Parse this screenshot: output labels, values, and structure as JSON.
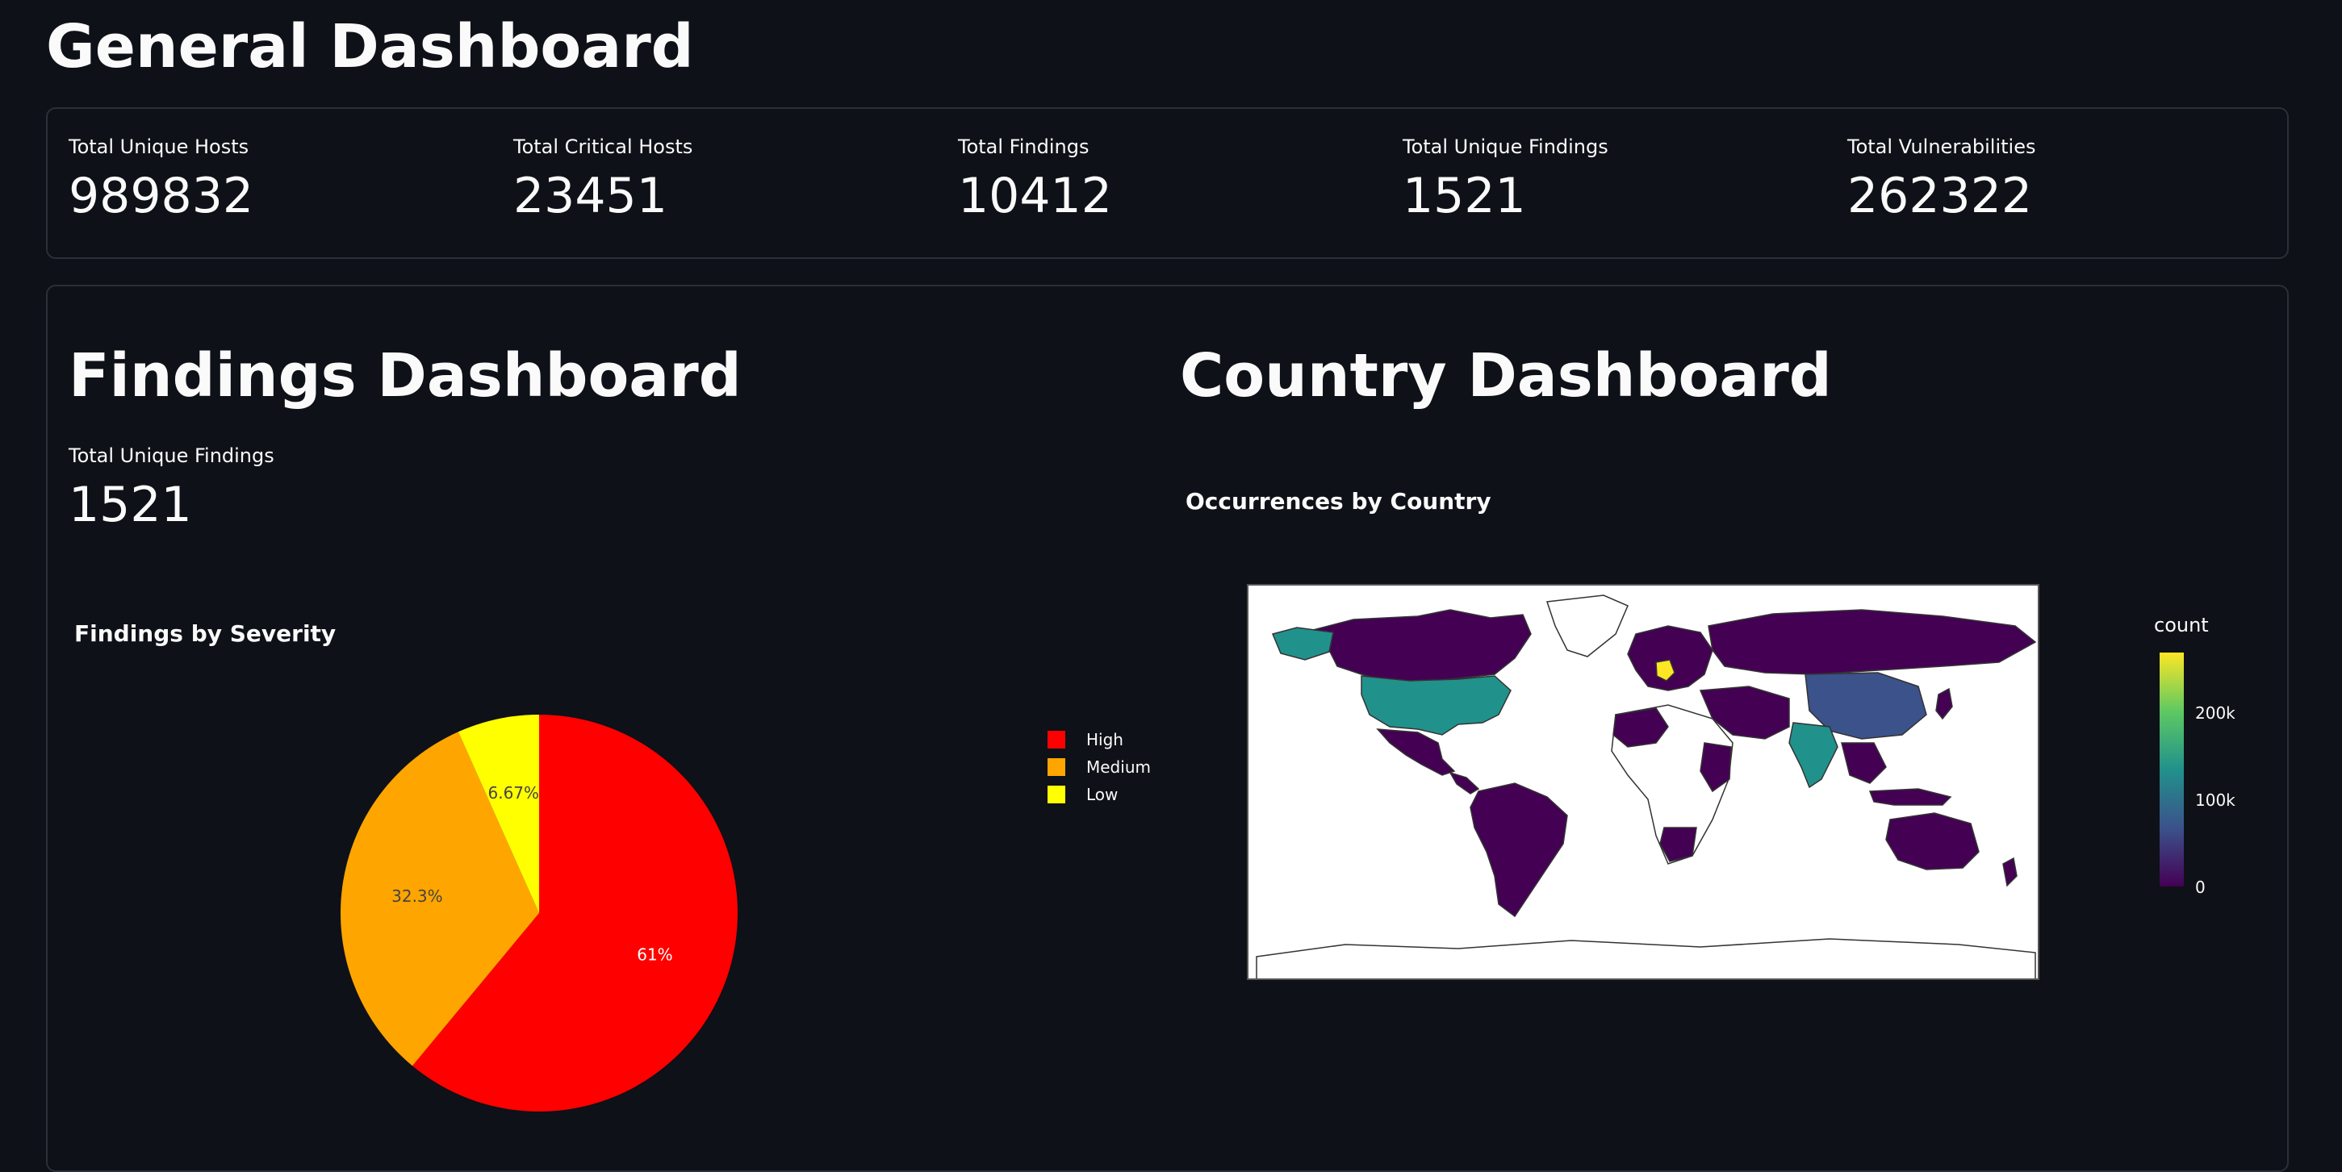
{
  "page": {
    "title": "General Dashboard"
  },
  "metrics": [
    {
      "label": "Total Unique Hosts",
      "value": "989832"
    },
    {
      "label": "Total Critical Hosts",
      "value": "23451"
    },
    {
      "label": "Total Findings",
      "value": "10412"
    },
    {
      "label": "Total Unique Findings",
      "value": "1521"
    },
    {
      "label": "Total Vulnerabilities",
      "value": "262322"
    }
  ],
  "findings": {
    "title": "Findings Dashboard",
    "metric_label": "Total Unique Findings",
    "metric_value": "1521"
  },
  "country": {
    "title": "Country Dashboard",
    "map_title": "Occurrences by Country",
    "colorbar": {
      "title": "count",
      "ticks": [
        "200k",
        "100k",
        "0"
      ],
      "range": [
        0,
        280000
      ]
    },
    "colors": {
      "low": "#440154",
      "mid_low": "#3b528b",
      "mid": "#21918c",
      "high": "#fde725"
    }
  },
  "chart_data": {
    "type": "pie",
    "title": "Findings by Severity",
    "categories": [
      "High",
      "Medium",
      "Low"
    ],
    "values": [
      61,
      32.3,
      6.67
    ],
    "labels": [
      "61%",
      "32.3%",
      "6.67%"
    ],
    "colors": [
      "#ff0000",
      "#ffa500",
      "#ffff00"
    ],
    "legend_placement": "right"
  }
}
